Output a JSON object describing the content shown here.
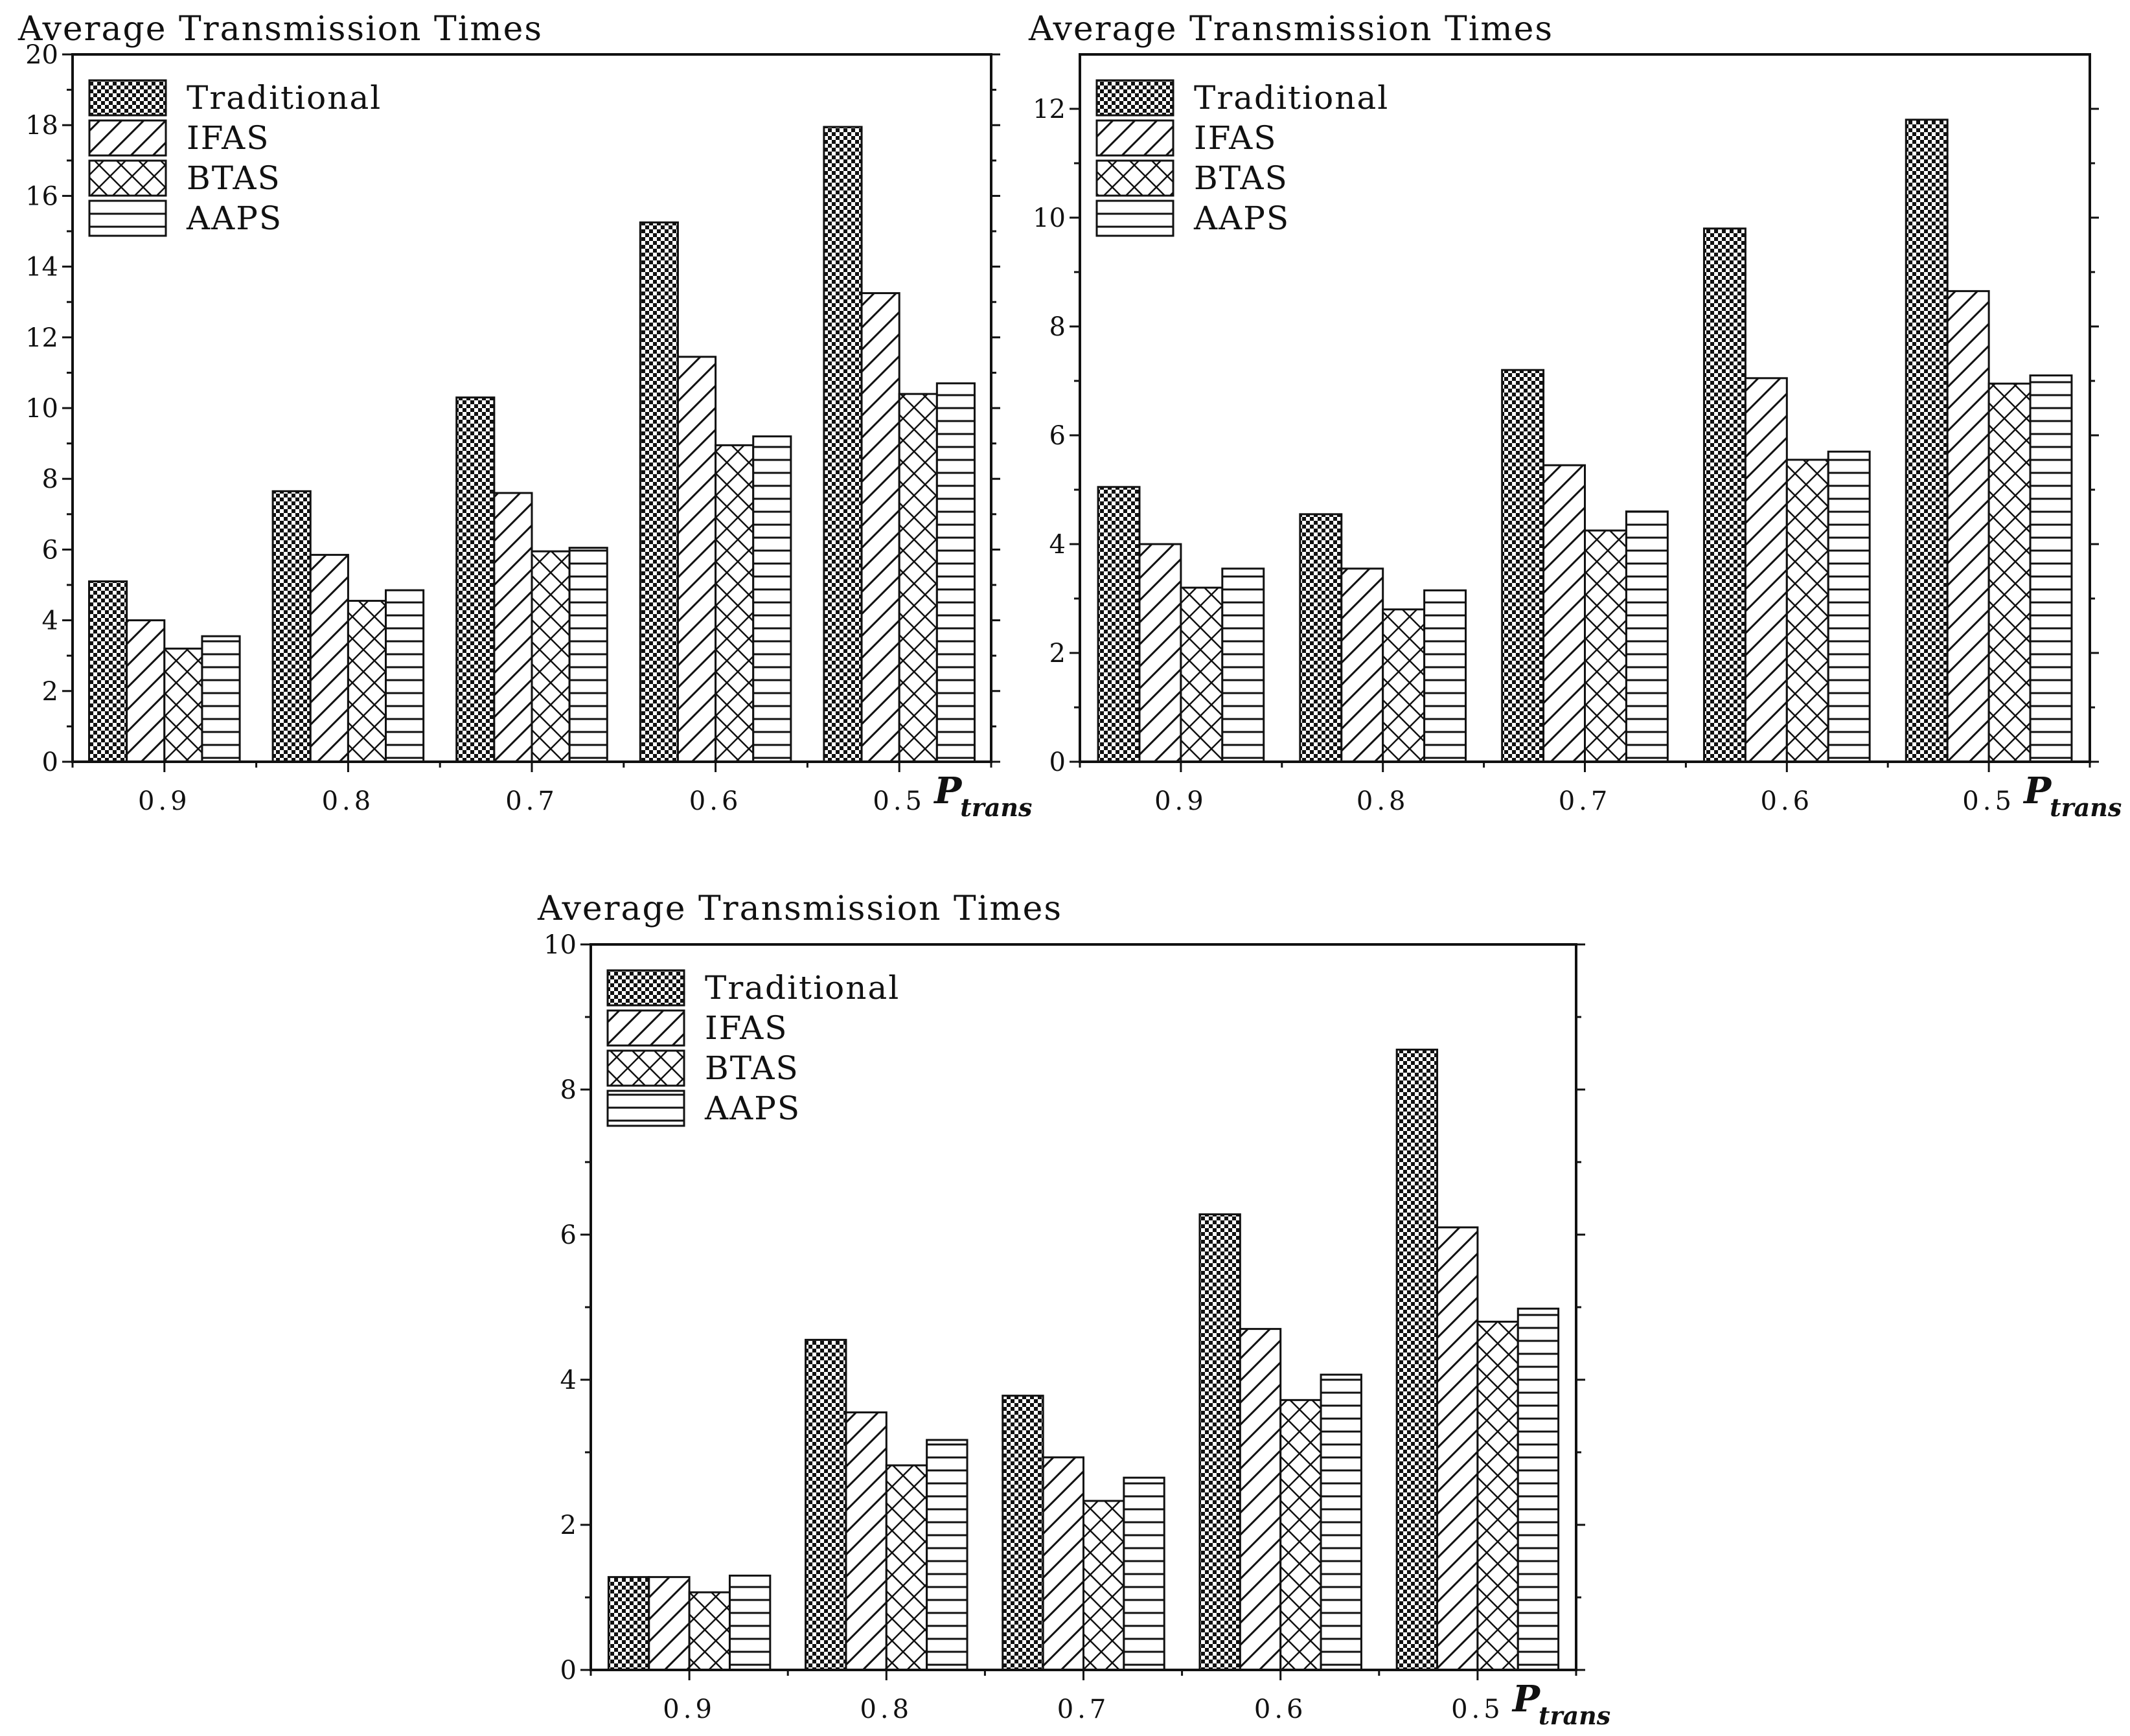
{
  "chart_data": [
    {
      "type": "bar",
      "title": "Average Transmission Times",
      "xlabel": "P",
      "xlabel_sub": "trans",
      "ylabel": "Average Transmission Times",
      "categories": [
        "0.9",
        "0.8",
        "0.7",
        "0.6",
        "0.5"
      ],
      "ylim": [
        0,
        20
      ],
      "yticks": [
        0,
        2,
        4,
        6,
        8,
        10,
        12,
        14,
        16,
        18,
        20
      ],
      "legend_position": "top-left",
      "series": [
        {
          "name": "Traditional",
          "pattern": "checker",
          "values": [
            5.1,
            7.65,
            10.3,
            15.25,
            17.95
          ]
        },
        {
          "name": "IFAS",
          "pattern": "diagonal",
          "values": [
            4.0,
            5.85,
            7.6,
            11.45,
            13.25
          ]
        },
        {
          "name": "BTAS",
          "pattern": "cross",
          "values": [
            3.2,
            4.55,
            5.95,
            8.95,
            10.4
          ]
        },
        {
          "name": "AAPS",
          "pattern": "horizontal",
          "values": [
            3.55,
            4.85,
            6.05,
            9.2,
            10.7
          ]
        }
      ]
    },
    {
      "type": "bar",
      "title": "Average Transmission Times",
      "xlabel": "P",
      "xlabel_sub": "trans",
      "ylabel": "Average Transmission Times",
      "categories": [
        "0.9",
        "0.8",
        "0.7",
        "0.6",
        "0.5"
      ],
      "ylim": [
        0,
        13
      ],
      "yticks": [
        0,
        2,
        4,
        6,
        8,
        10,
        12
      ],
      "legend_position": "top-left",
      "series": [
        {
          "name": "Traditional",
          "pattern": "checker",
          "values": [
            5.05,
            4.55,
            7.2,
            9.8,
            11.8
          ]
        },
        {
          "name": "IFAS",
          "pattern": "diagonal",
          "values": [
            4.0,
            3.55,
            5.45,
            7.05,
            8.65
          ]
        },
        {
          "name": "BTAS",
          "pattern": "cross",
          "values": [
            3.2,
            2.8,
            4.25,
            5.55,
            6.95
          ]
        },
        {
          "name": "AAPS",
          "pattern": "horizontal",
          "values": [
            3.55,
            3.15,
            4.6,
            5.7,
            7.1
          ]
        }
      ]
    },
    {
      "type": "bar",
      "title": "Average Transmission Times",
      "xlabel": "P",
      "xlabel_sub": "trans",
      "ylabel": "Average Transmission Times",
      "categories": [
        "0.9",
        "0.8",
        "0.7",
        "0.6",
        "0.5"
      ],
      "ylim": [
        0,
        10
      ],
      "yticks": [
        0,
        2,
        4,
        6,
        8,
        10
      ],
      "legend_position": "top-left",
      "series": [
        {
          "name": "Traditional",
          "pattern": "checker",
          "values": [
            1.28,
            4.55,
            3.78,
            6.28,
            8.55
          ]
        },
        {
          "name": "IFAS",
          "pattern": "diagonal",
          "values": [
            1.28,
            3.55,
            2.93,
            4.7,
            6.1
          ]
        },
        {
          "name": "BTAS",
          "pattern": "cross",
          "values": [
            1.07,
            2.82,
            2.33,
            3.72,
            4.8
          ]
        },
        {
          "name": "AAPS",
          "pattern": "horizontal",
          "values": [
            1.3,
            3.17,
            2.65,
            4.07,
            4.98
          ]
        }
      ]
    }
  ]
}
